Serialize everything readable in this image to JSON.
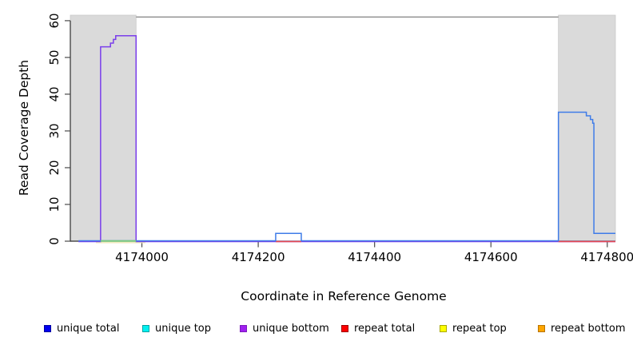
{
  "chart_data": {
    "type": "line",
    "title": "",
    "xlabel": "Coordinate in Reference Genome",
    "ylabel": "Read Coverage Depth",
    "xlim": [
      4173877,
      4174814
    ],
    "ylim": [
      0,
      61.5
    ],
    "x_ticks": [
      4174000,
      4174200,
      4174400,
      4174600,
      4174800
    ],
    "y_ticks": [
      0,
      10,
      20,
      30,
      40,
      50,
      60
    ],
    "grid": false,
    "legend_position": "bottom",
    "axis_color": "#2f2f2f",
    "tick_color": "#4a4a4a",
    "region_border_color": "#c9c9c9",
    "shaded_regions": [
      {
        "name": "left-masked-region",
        "x0": 4173877,
        "x1": 4173990,
        "color": "#dadada"
      },
      {
        "name": "right-masked-region",
        "x0": 4174716,
        "x1": 4174814,
        "color": "#dadada"
      }
    ],
    "reference_line": {
      "y": 61,
      "x0": 4173990,
      "x1": 4174716,
      "color": "#8c8c8c"
    },
    "series": [
      {
        "name": "repeat-top",
        "color": "#efe7b4",
        "segments": [
          [
            [
              4173921,
              0
            ],
            [
              4174006,
              0
            ]
          ]
        ]
      },
      {
        "name": "unique-bottom",
        "color": "#7a3eeb",
        "segments": [
          [
            [
              4173891,
              0
            ],
            [
              4173929,
              0
            ],
            [
              4173929,
              53
            ],
            [
              4173946,
              53
            ],
            [
              4173946,
              54
            ],
            [
              4173951,
              54
            ],
            [
              4173951,
              55
            ],
            [
              4173955,
              55
            ],
            [
              4173955,
              56
            ],
            [
              4173990,
              56
            ],
            [
              4173990,
              0
            ],
            [
              4174814,
              0
            ]
          ]
        ]
      },
      {
        "name": "repeat-total",
        "color": "#eb4a54",
        "segments": [
          [
            [
              4174230,
              0
            ],
            [
              4174274,
              0
            ]
          ],
          [
            [
              4174716,
              0
            ],
            [
              4174814,
              0
            ]
          ]
        ]
      },
      {
        "name": "unique-total",
        "color": "#3f7ce8",
        "segments": [
          [
            [
              4173891,
              0
            ],
            [
              4174230,
              0
            ],
            [
              4174230,
              2
            ],
            [
              4174274,
              2
            ],
            [
              4174274,
              0
            ],
            [
              4174716,
              0
            ],
            [
              4174716,
              35
            ],
            [
              4174764,
              35
            ],
            [
              4174764,
              34
            ],
            [
              4174771,
              34
            ],
            [
              4174771,
              33
            ],
            [
              4174775,
              33
            ],
            [
              4174775,
              32
            ],
            [
              4174777,
              32
            ],
            [
              4174777,
              2
            ],
            [
              4174814,
              2
            ]
          ]
        ]
      },
      {
        "name": "top-strand-overlap",
        "color": "#7ccb7e",
        "segments": [
          [
            [
              4173929,
              0
            ],
            [
              4173990,
              0
            ]
          ]
        ]
      }
    ],
    "legend": [
      {
        "label": "unique total",
        "fill": "#0000ee",
        "border": "#0000a0"
      },
      {
        "label": "unique top",
        "fill": "#00f0f0",
        "border": "#00a3a3"
      },
      {
        "label": "unique bottom",
        "fill": "#a020f0",
        "border": "#7d19bd"
      },
      {
        "label": "repeat total",
        "fill": "#ff0000",
        "border": "#a00000"
      },
      {
        "label": "repeat top",
        "fill": "#ffff00",
        "border": "#a8a800"
      },
      {
        "label": "repeat bottom",
        "fill": "#ffa500",
        "border": "#b97400"
      }
    ]
  }
}
